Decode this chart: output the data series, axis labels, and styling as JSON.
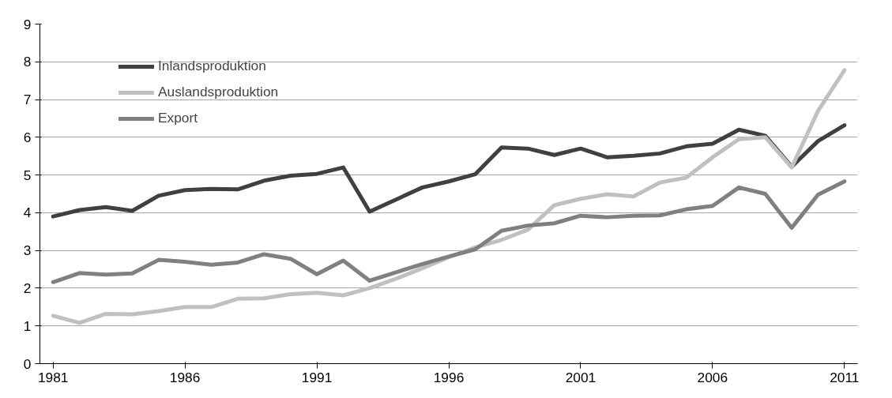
{
  "chart_data": {
    "type": "line",
    "x": [
      1981,
      1982,
      1983,
      1984,
      1985,
      1986,
      1987,
      1988,
      1989,
      1990,
      1991,
      1992,
      1993,
      1994,
      1995,
      1996,
      1997,
      1998,
      1999,
      2000,
      2001,
      2002,
      2003,
      2004,
      2005,
      2006,
      2007,
      2008,
      2009,
      2010,
      2011
    ],
    "series": [
      {
        "name": "Inlandsproduktion",
        "color": "#404040",
        "values": [
          3.9,
          4.07,
          4.15,
          4.05,
          4.45,
          4.6,
          4.63,
          4.62,
          4.85,
          4.98,
          5.03,
          5.2,
          4.03,
          4.35,
          4.67,
          4.83,
          5.02,
          5.73,
          5.7,
          5.53,
          5.7,
          5.47,
          5.51,
          5.57,
          5.76,
          5.83,
          6.2,
          6.04,
          5.22,
          5.9,
          6.32
        ]
      },
      {
        "name": "Auslandsproduktion",
        "color": "#c0c0c0",
        "values": [
          1.27,
          1.08,
          1.32,
          1.31,
          1.39,
          1.5,
          1.5,
          1.72,
          1.73,
          1.84,
          1.88,
          1.81,
          2.0,
          2.25,
          2.53,
          2.82,
          3.08,
          3.28,
          3.55,
          4.2,
          4.37,
          4.49,
          4.43,
          4.8,
          4.93,
          5.47,
          5.95,
          6.0,
          5.2,
          6.7,
          7.78
        ]
      },
      {
        "name": "Export",
        "color": "#808080",
        "values": [
          2.16,
          2.4,
          2.36,
          2.39,
          2.75,
          2.7,
          2.62,
          2.68,
          2.9,
          2.78,
          2.37,
          2.73,
          2.2,
          2.42,
          2.64,
          2.84,
          3.03,
          3.52,
          3.66,
          3.72,
          3.92,
          3.88,
          3.92,
          3.93,
          4.09,
          4.18,
          4.67,
          4.5,
          3.6,
          4.48,
          4.83
        ]
      }
    ],
    "xlim": [
      1980.5,
      2011.5
    ],
    "xticks": [
      1981,
      1986,
      1991,
      1996,
      2001,
      2006,
      2011
    ],
    "ylim": [
      0,
      9
    ],
    "yticks": [
      0,
      1,
      2,
      3,
      4,
      5,
      6,
      7,
      8,
      9
    ],
    "grid": "y",
    "legend": "top left",
    "marker": "none",
    "line_style": "solid"
  }
}
